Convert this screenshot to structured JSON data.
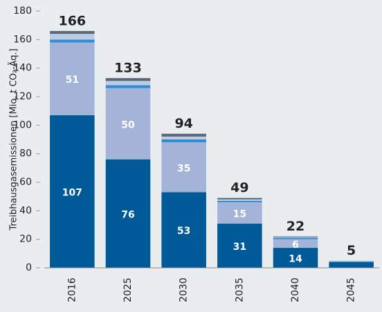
{
  "chart_data": {
    "type": "stacked-bar",
    "y_label": "Treibhausgasemissionen [Mio. t CO₂-Äq.]",
    "categories": [
      "2016",
      "2025",
      "2030",
      "2035",
      "2040",
      "2045"
    ],
    "series": [
      {
        "color": "#005a97",
        "values": [
          107,
          76,
          53,
          31,
          14,
          4
        ]
      },
      {
        "color": "#a4b4d8",
        "values": [
          51,
          50,
          35,
          15,
          6,
          0
        ]
      },
      {
        "color": "#2c8fd6",
        "values": [
          2,
          2,
          2,
          1,
          1,
          0.5
        ]
      },
      {
        "color": "#bccbe6",
        "values": [
          4,
          3,
          2,
          1,
          0.5,
          0.5
        ]
      },
      {
        "color": "#5b6878",
        "values": [
          2,
          2,
          2,
          1,
          0.5,
          0
        ]
      }
    ],
    "totals": [
      166,
      133,
      94,
      49,
      22,
      5
    ],
    "ylim": [
      0,
      180
    ],
    "yticks": [
      0,
      20,
      40,
      60,
      80,
      100,
      120,
      140,
      160,
      180
    ]
  }
}
